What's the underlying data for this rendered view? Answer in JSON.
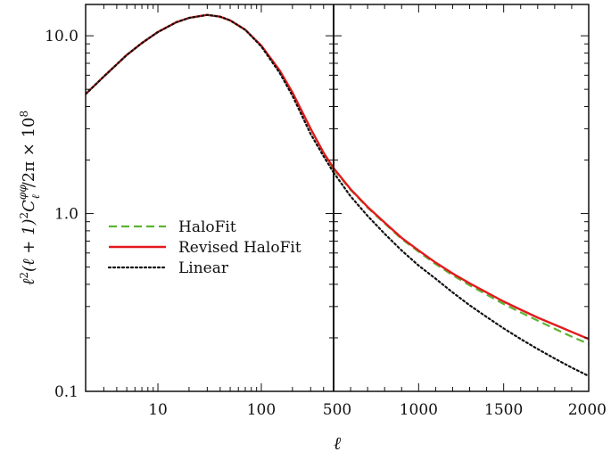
{
  "chart_data": {
    "type": "line",
    "xlabel": "ℓ",
    "ylabel_parts": {
      "pre": "ℓ",
      "sq": "2",
      "mid": "(ℓ + 1)",
      "sq2": "2",
      "C": "C",
      "sup": "φφ",
      "sub": "ℓ",
      "post": "/2π × 10",
      "exp": "8"
    },
    "y_scale": "log",
    "ylim": [
      0.1,
      15
    ],
    "y_ticks": [
      0.1,
      1.0,
      10.0
    ],
    "y_tick_labels": [
      "0.1",
      "1.0",
      "10.0"
    ],
    "panels": [
      {
        "x_scale": "log",
        "xlim": [
          2,
          500
        ],
        "x_ticks": [
          10,
          100
        ],
        "x_tick_labels": [
          "10",
          "100"
        ]
      },
      {
        "x_scale": "linear",
        "xlim": [
          500,
          2000
        ],
        "x_ticks": [
          500,
          1000,
          1500,
          2000
        ],
        "x_tick_labels": [
          "500",
          "1000",
          "1500",
          "2000"
        ]
      }
    ],
    "grid": false,
    "legend_position": "center-left",
    "series": [
      {
        "name": "HaloFit",
        "color": "#5bb333",
        "dash": "dashed",
        "x": [
          2,
          3,
          5,
          7,
          10,
          15,
          20,
          30,
          40,
          50,
          70,
          100,
          150,
          200,
          300,
          400,
          500,
          600,
          700,
          800,
          900,
          1000,
          1100,
          1200,
          1300,
          1400,
          1500,
          1600,
          1700,
          1800,
          1900,
          2000
        ],
        "y": [
          4.7,
          5.9,
          7.8,
          9.1,
          10.5,
          11.9,
          12.6,
          13.1,
          12.8,
          12.2,
          10.8,
          8.8,
          6.4,
          4.8,
          3.0,
          2.2,
          1.78,
          1.36,
          1.08,
          0.88,
          0.72,
          0.61,
          0.52,
          0.45,
          0.395,
          0.35,
          0.31,
          0.278,
          0.25,
          0.225,
          0.203,
          0.185
        ]
      },
      {
        "name": "Revised HaloFit",
        "color": "#e31a1c",
        "dash": "solid",
        "x": [
          2,
          3,
          5,
          7,
          10,
          15,
          20,
          30,
          40,
          50,
          70,
          100,
          150,
          200,
          300,
          400,
          500,
          600,
          700,
          800,
          900,
          1000,
          1100,
          1200,
          1300,
          1400,
          1500,
          1600,
          1700,
          1800,
          1900,
          2000
        ],
        "y": [
          4.7,
          5.9,
          7.8,
          9.1,
          10.5,
          11.9,
          12.6,
          13.1,
          12.8,
          12.2,
          10.8,
          8.8,
          6.4,
          4.8,
          3.0,
          2.2,
          1.8,
          1.37,
          1.09,
          0.89,
          0.73,
          0.62,
          0.53,
          0.46,
          0.405,
          0.36,
          0.32,
          0.288,
          0.26,
          0.237,
          0.216,
          0.197
        ]
      },
      {
        "name": "Linear",
        "color": "#111111",
        "dash": "dotted",
        "x": [
          2,
          3,
          5,
          7,
          10,
          15,
          20,
          30,
          40,
          50,
          70,
          100,
          150,
          200,
          300,
          400,
          500,
          600,
          700,
          800,
          900,
          1000,
          1100,
          1200,
          1300,
          1400,
          1500,
          1600,
          1700,
          1800,
          1900,
          2000
        ],
        "y": [
          4.7,
          5.9,
          7.8,
          9.1,
          10.5,
          11.9,
          12.6,
          13.1,
          12.8,
          12.2,
          10.8,
          8.7,
          6.2,
          4.6,
          2.8,
          2.1,
          1.7,
          1.25,
          0.97,
          0.77,
          0.62,
          0.51,
          0.43,
          0.36,
          0.305,
          0.262,
          0.226,
          0.197,
          0.173,
          0.153,
          0.136,
          0.122
        ]
      }
    ]
  }
}
